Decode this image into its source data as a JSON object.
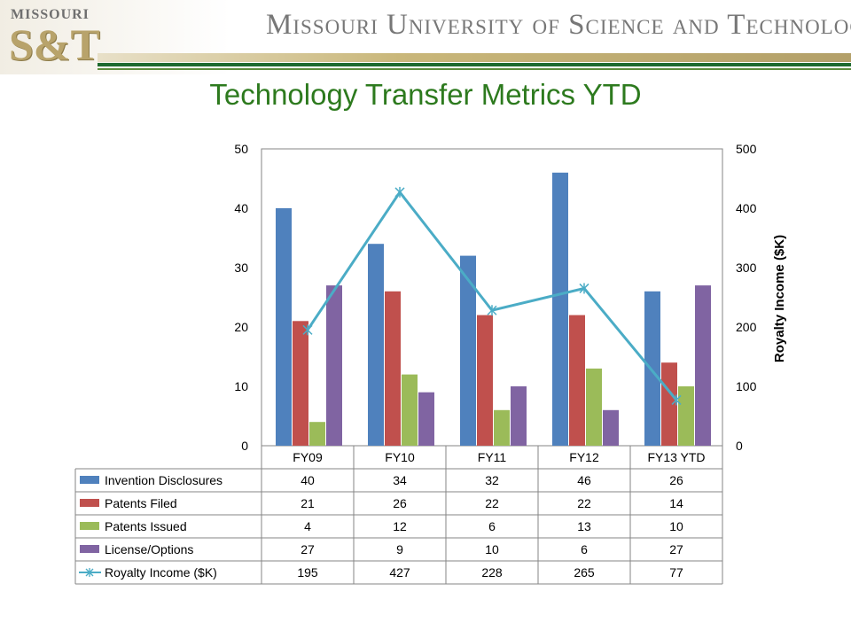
{
  "header": {
    "logo_top": "MISSOURI",
    "logo_bottom": "S&T",
    "university_name": "Missouri University of Science and Technology"
  },
  "slide": {
    "title": "Technology Transfer Metrics YTD"
  },
  "chart_data": {
    "type": "bar",
    "categories": [
      "FY09",
      "FY10",
      "FY11",
      "FY12",
      "FY13 YTD"
    ],
    "series": [
      {
        "name": "Invention Disclosures",
        "type": "bar",
        "axis": "left",
        "color": "#4f81bd",
        "values": [
          40,
          34,
          32,
          46,
          26
        ]
      },
      {
        "name": "Patents Filed",
        "type": "bar",
        "axis": "left",
        "color": "#c0504d",
        "values": [
          21,
          26,
          22,
          22,
          14
        ]
      },
      {
        "name": "Patents Issued",
        "type": "bar",
        "axis": "left",
        "color": "#9bbb59",
        "values": [
          4,
          12,
          6,
          13,
          10
        ]
      },
      {
        "name": "License/Options",
        "type": "bar",
        "axis": "left",
        "color": "#8064a2",
        "values": [
          27,
          9,
          10,
          6,
          27
        ]
      },
      {
        "name": "Royalty Income ($K)",
        "type": "line",
        "axis": "right",
        "color": "#4bacc6",
        "values": [
          195,
          427,
          228,
          265,
          77
        ]
      }
    ],
    "y_left": {
      "min": 0,
      "max": 50,
      "ticks": [
        "0",
        "10",
        "20",
        "30",
        "40",
        "50"
      ]
    },
    "y_right": {
      "min": 0,
      "max": 500,
      "label": "Royalty Income ($K)",
      "ticks": [
        "0",
        "100",
        "200",
        "300",
        "400",
        "500"
      ]
    },
    "grid": false,
    "data_table": true
  }
}
